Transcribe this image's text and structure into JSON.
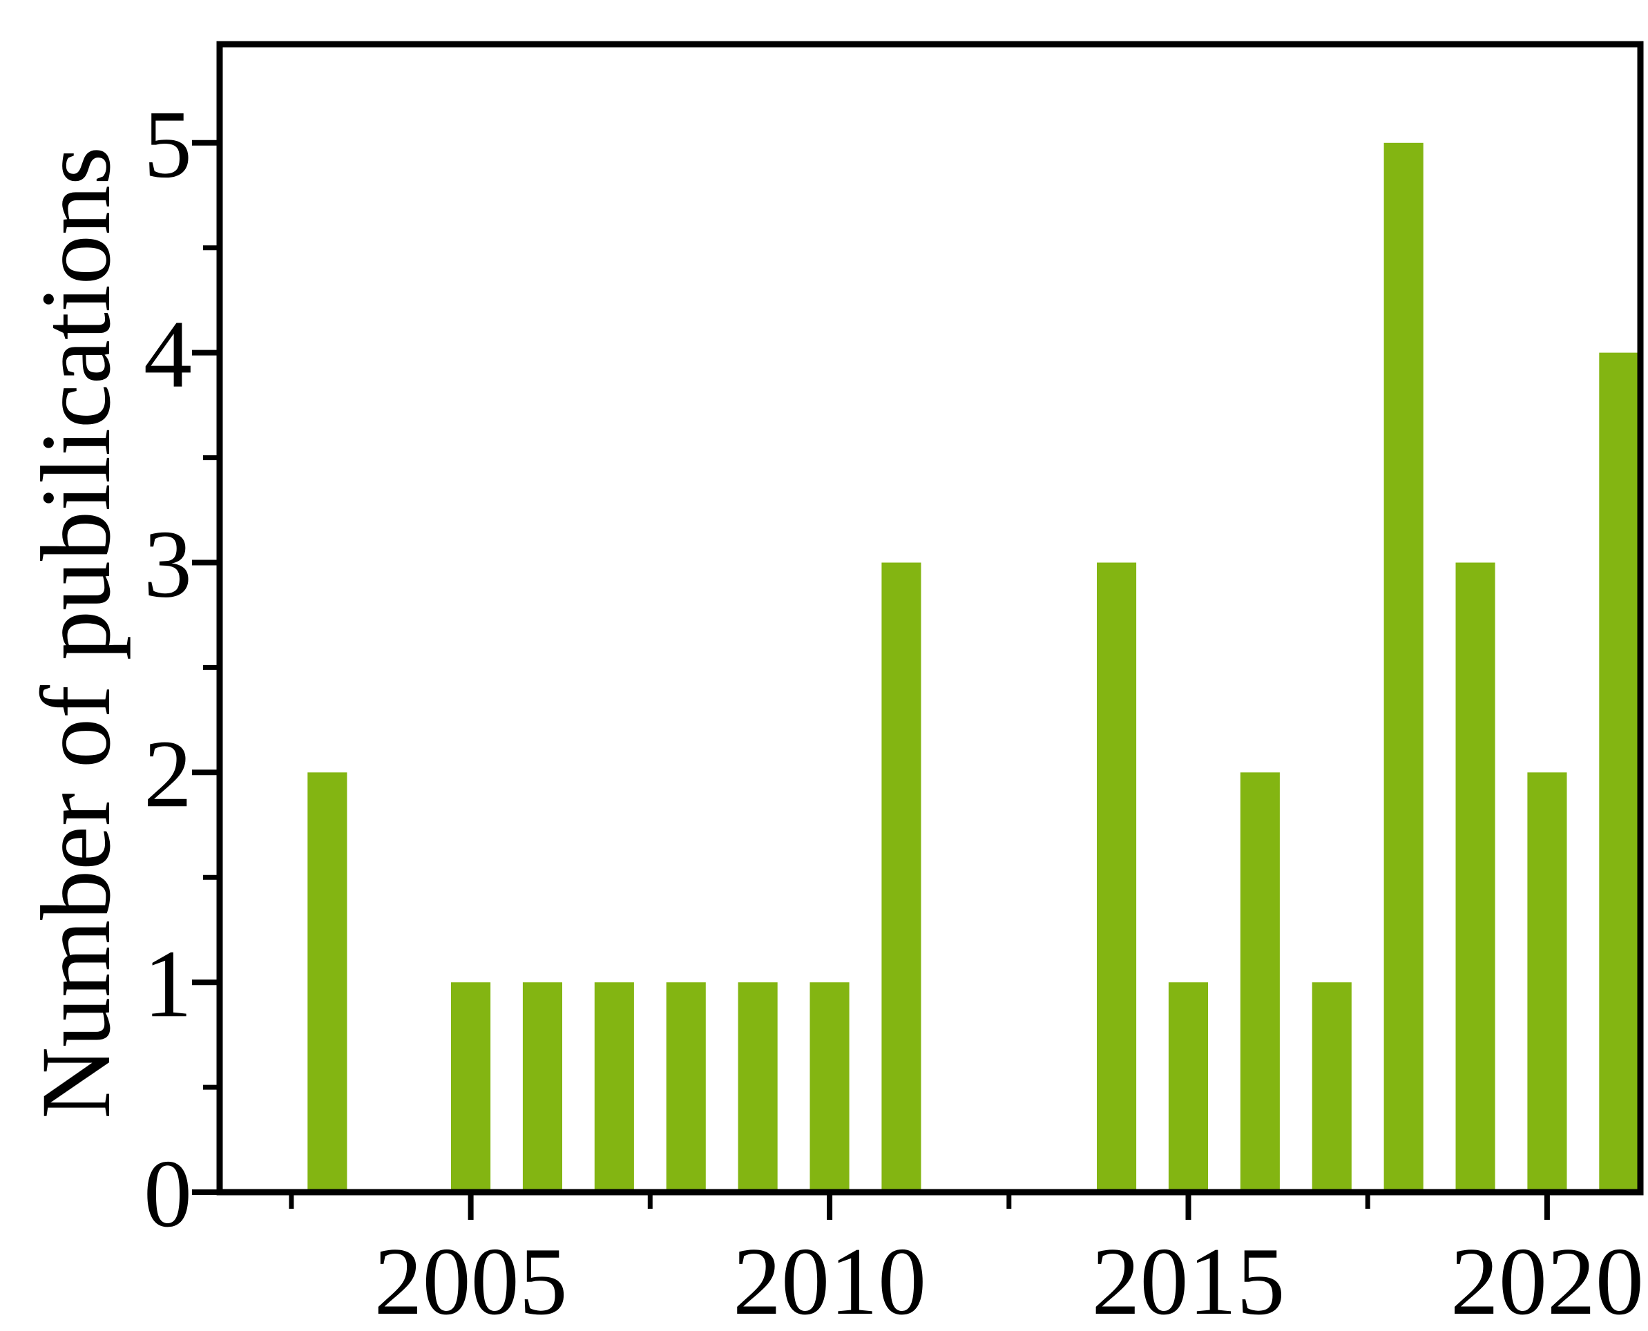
{
  "page": {
    "background_color": "#ffffff"
  },
  "chart_data": {
    "type": "bar",
    "title": "",
    "xlabel": "",
    "ylabel": "Number of pubilications",
    "x": [
      2003,
      2005,
      2006,
      2007,
      2008,
      2009,
      2010,
      2011,
      2014,
      2015,
      2016,
      2017,
      2018,
      2019,
      2020,
      2021
    ],
    "values": [
      2,
      1,
      1,
      1,
      1,
      1,
      1,
      3,
      3,
      1,
      2,
      1,
      5,
      3,
      2,
      4
    ],
    "bar_color": "#83b512",
    "axis_color": "#000000",
    "background_color": "#ffffff",
    "bar_width_years": 0.55,
    "xlim": [
      2001.5,
      2021.3
    ],
    "ylim": [
      0,
      5.47
    ],
    "x_major_ticks": {
      "values": [
        2005,
        2010,
        2015,
        2020
      ],
      "labels": [
        "2005",
        "2010",
        "2015",
        "2020"
      ]
    },
    "x_minor_ticks": [
      2002.5,
      2007.5,
      2012.5,
      2017.5
    ],
    "y_major_ticks": {
      "values": [
        0,
        1,
        2,
        3,
        4,
        5
      ],
      "labels": [
        "0",
        "1",
        "2",
        "3",
        "4",
        "5"
      ]
    },
    "y_minor_ticks": [
      0.5,
      1.5,
      2.5,
      3.5,
      4.5
    ],
    "grid": false,
    "legend": null
  }
}
